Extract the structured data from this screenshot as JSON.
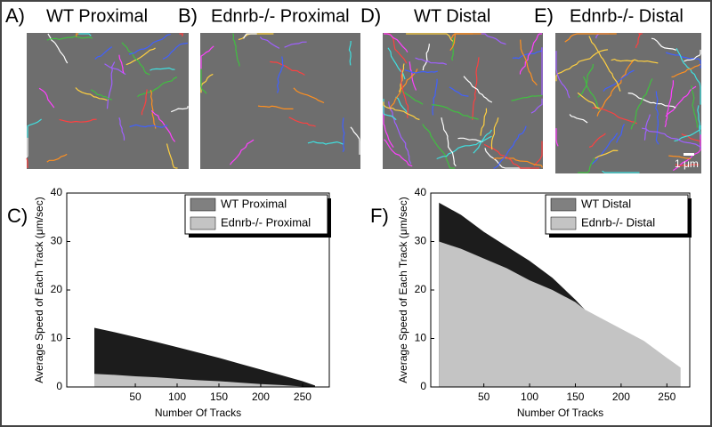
{
  "panels": [
    {
      "label": "A)",
      "title": "WT Proximal"
    },
    {
      "label": "B)",
      "title": "Ednrb-/- Proximal"
    },
    {
      "label": "D)",
      "title": "WT Distal"
    },
    {
      "label": "E)",
      "title": "Ednrb-/- Distal"
    }
  ],
  "scale_bar": "1 μm",
  "chart_data": [
    {
      "type": "area",
      "panel_label": "C)",
      "x_label": "Number Of Tracks",
      "y_label": "Average Speed of Each Track (μm/sec)",
      "x": [
        1,
        25,
        50,
        75,
        100,
        125,
        150,
        175,
        200,
        225,
        250,
        265
      ],
      "series": [
        {
          "name": "WT Proximal",
          "color": "#1c1c1c",
          "legend_color": "#808080",
          "values": [
            12.2,
            11.3,
            10.3,
            9.3,
            8.2,
            7.1,
            6,
            4.8,
            3.6,
            2.4,
            1.2,
            0.3
          ]
        },
        {
          "name": "Ednrb-/- Proximal",
          "color": "#c4c4c4",
          "legend_color": "#c4c4c4",
          "values": [
            2.7,
            2.5,
            2.2,
            2,
            1.7,
            1.4,
            1.2,
            0.9,
            0.6,
            0.4,
            0.1,
            0
          ]
        }
      ],
      "xlim": [
        -32,
        282
      ],
      "xticks": [
        50,
        100,
        150,
        200,
        250
      ],
      "ylim": [
        0,
        40
      ],
      "yticks": [
        0,
        10,
        20,
        30,
        40
      ],
      "legend": "upper right"
    },
    {
      "type": "area",
      "panel_label": "F)",
      "x_label": "Number Of Tracks",
      "y_label": "Average Speed of Each Track (μm/sec)",
      "x": [
        1,
        25,
        50,
        75,
        100,
        125,
        150,
        160,
        175,
        200,
        225,
        250,
        265
      ],
      "series": [
        {
          "name": "WT Distal",
          "color": "#1c1c1c",
          "legend_color": "#808080",
          "values": [
            38,
            35.5,
            32,
            29,
            26,
            22.5,
            18,
            16,
            null,
            null,
            null,
            null,
            null
          ]
        },
        {
          "name": "Ednrb-/- Distal",
          "color": "#c4c4c4",
          "legend_color": "#c4c4c4",
          "values": [
            30,
            28.5,
            26.5,
            24.5,
            22,
            20,
            17.5,
            16,
            14.5,
            12,
            9.5,
            6,
            4
          ]
        }
      ],
      "xlim": [
        -8,
        275
      ],
      "xticks": [
        50,
        100,
        150,
        200,
        250
      ],
      "ylim": [
        0,
        40
      ],
      "yticks": [
        0,
        10,
        20,
        30,
        40
      ],
      "legend": "upper right"
    }
  ]
}
